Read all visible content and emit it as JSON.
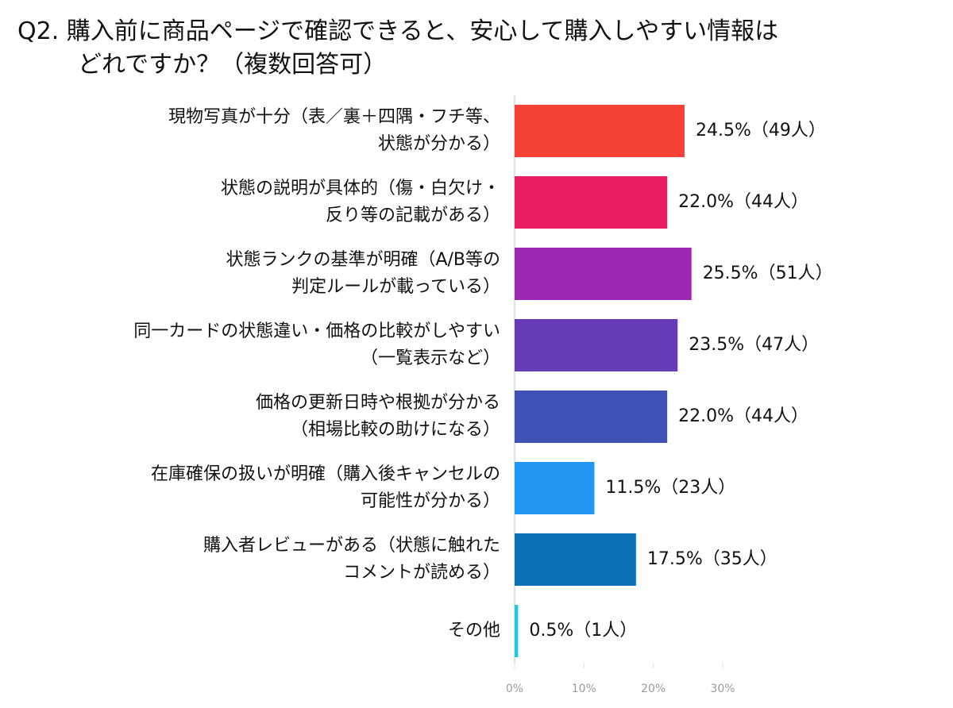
{
  "chart_data": {
    "type": "bar",
    "orientation": "horizontal",
    "title": "Q2. 購入前に商品ページで確認できると、安心して購入しやすい情報は\nどれですか？（複数回答可）",
    "categories": [
      "現物写真が十分（表／裏＋四隅・フチ等、\n状態が分かる）",
      "状態の説明が具体的（傷・白欠け・\n反り等の記載がある）",
      "状態ランクの基準が明確（A/B等の\n判定ルールが載っている）",
      "同一カードの状態違い・価格の比較がしやすい\n（一覧表示など）",
      "価格の更新日時や根拠が分かる\n（相場比較の助けになる）",
      "在庫確保の扱いが明確（購入後キャンセルの\n可能性が分かる）",
      "購入者レビューがある（状態に触れた\nコメントが読める）",
      "その他"
    ],
    "values": [
      24.5,
      22.0,
      25.5,
      23.5,
      22.0,
      11.5,
      17.5,
      0.5
    ],
    "value_labels": [
      "24.5%（49人）",
      "22.0%（44人）",
      "25.5%（51人）",
      "23.5%（47人）",
      "22.0%（44人）",
      "11.5%（23人）",
      "17.5%（35人）",
      "0.5%（1人）"
    ],
    "colors": [
      "#f44336",
      "#e91e63",
      "#9c27b0",
      "#673ab7",
      "#3f51b5",
      "#2196f3",
      "#0a6fb5",
      "#26c6da"
    ],
    "xlim": [
      0,
      30
    ],
    "xticks": [
      {
        "value": 0,
        "label": "0%"
      },
      {
        "value": 10,
        "label": "10%"
      },
      {
        "value": 20,
        "label": "20%"
      },
      {
        "value": 30,
        "label": "30%"
      }
    ]
  }
}
